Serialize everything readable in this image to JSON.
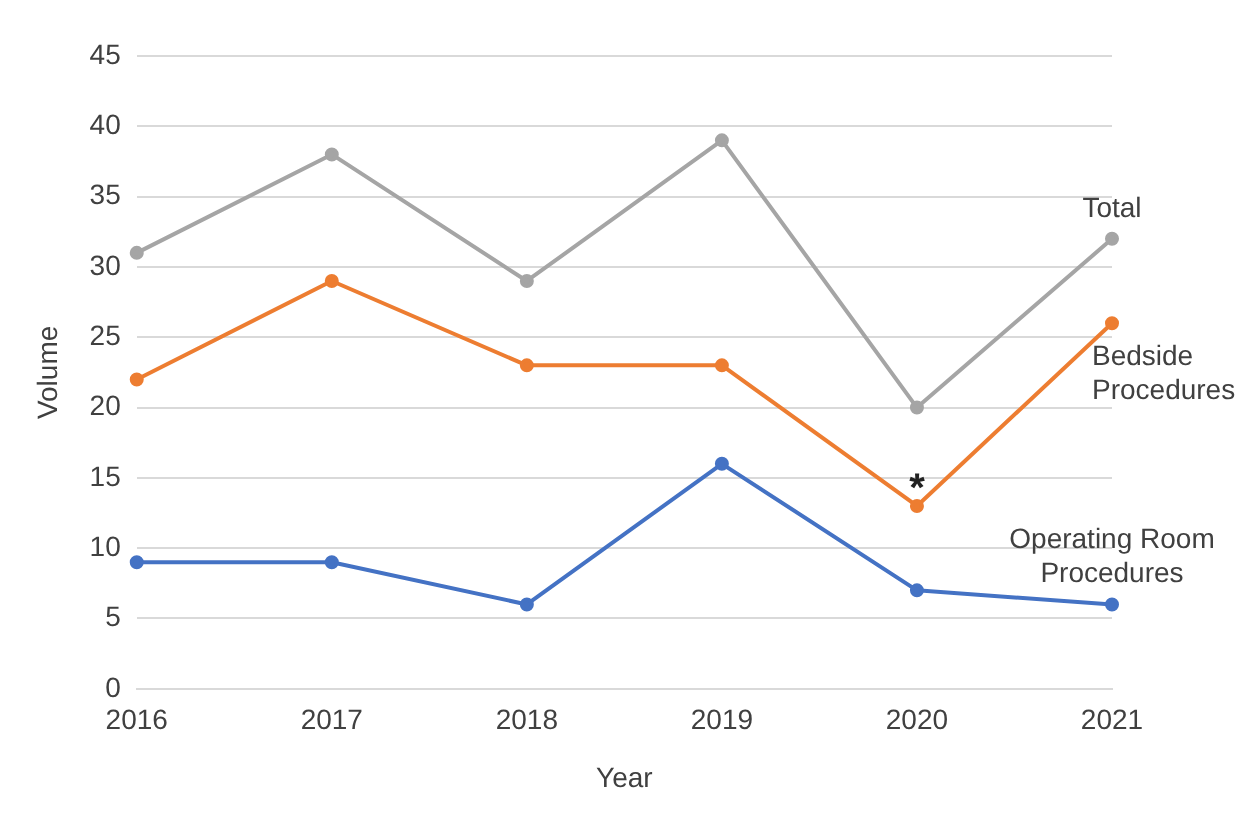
{
  "chart_data": {
    "type": "line",
    "xlabel": "Year",
    "ylabel": "Volume",
    "categories": [
      "2016",
      "2017",
      "2018",
      "2019",
      "2020",
      "2021"
    ],
    "series": [
      {
        "name": "Total",
        "color": "#a5a5a5",
        "values": [
          31,
          38,
          29,
          39,
          20,
          32
        ]
      },
      {
        "name": "Bedside Procedures",
        "color": "#ed7d31",
        "values": [
          22,
          29,
          23,
          23,
          13,
          26
        ]
      },
      {
        "name": "Operating Room Procedures",
        "color": "#4472c4",
        "values": [
          9,
          9,
          6,
          16,
          7,
          6
        ]
      }
    ],
    "ylim": [
      0,
      45
    ],
    "yticks": [
      0,
      5,
      10,
      15,
      20,
      25,
      30,
      35,
      40,
      45
    ],
    "grid": "y",
    "legend": false,
    "marker": "circle",
    "line_style": "solid",
    "annotations": [
      {
        "text": "*",
        "x": "2020",
        "y": 13
      }
    ]
  }
}
